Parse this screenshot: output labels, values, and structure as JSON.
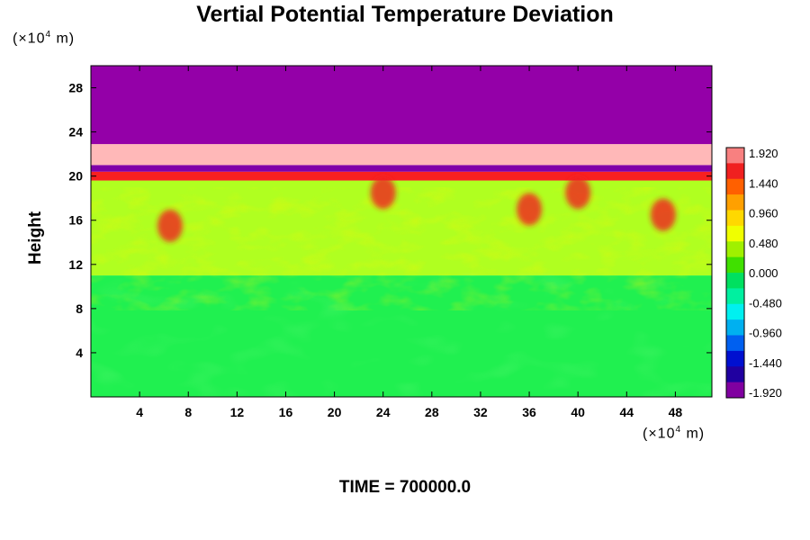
{
  "chart": {
    "title": "Vertial Potential Temperature Deviation",
    "ylabel": "Height",
    "y_unit": {
      "prefix": "(×10",
      "exp": "4",
      "suffix": " m)"
    },
    "x_unit": {
      "prefix": "(×10",
      "exp": "4",
      "suffix": " m)"
    },
    "time_label": "TIME = 700000.0"
  },
  "chart_data": {
    "type": "heatmap",
    "title": "Vertial Potential Temperature Deviation",
    "ylabel": "Height",
    "xlabel": "",
    "x_ticks": [
      4,
      8,
      12,
      16,
      20,
      24,
      28,
      32,
      36,
      40,
      44,
      48
    ],
    "y_ticks": [
      4,
      8,
      12,
      16,
      20,
      24,
      28
    ],
    "xlim": [
      0,
      51
    ],
    "ylim": [
      0,
      30
    ],
    "colorbar": {
      "labels": [
        "1.920",
        "1.440",
        "0.960",
        "0.480",
        "0.000",
        "-0.480",
        "-0.960",
        "-1.440",
        "-1.920"
      ],
      "range": [
        -1.92,
        1.92
      ],
      "colors": [
        "#f88080",
        "#f02020",
        "#ff6000",
        "#ffa000",
        "#ffd800",
        "#f0ff00",
        "#a0f000",
        "#40e000",
        "#00e060",
        "#00f0a0",
        "#00f0f0",
        "#00b0f0",
        "#0060f0",
        "#0010d0",
        "#2000a0",
        "#8000a0"
      ]
    },
    "layers": [
      {
        "y_range": [
          0,
          11
        ],
        "value": -0.05,
        "color": "#20f050"
      },
      {
        "y_range": [
          11,
          19.6
        ],
        "value": 0.45,
        "color": "#b0ff20"
      },
      {
        "y_range": [
          19.6,
          20.4
        ],
        "value": 1.6,
        "color": "#f82020"
      },
      {
        "y_range": [
          20.4,
          21.0
        ],
        "value": -1.92,
        "color": "#8000a8"
      },
      {
        "y_range": [
          21.0,
          22.9
        ],
        "value": 1.92,
        "color": "#ffb8b8"
      },
      {
        "y_range": [
          22.9,
          30
        ],
        "value": -1.92,
        "color": "#9400a8"
      }
    ],
    "hot_spots": [
      {
        "x": 6.5,
        "y": 15.5,
        "value": 1.6
      },
      {
        "x": 24,
        "y": 18.5,
        "value": 1.4
      },
      {
        "x": 36,
        "y": 17,
        "value": 1.3
      },
      {
        "x": 40,
        "y": 18.5,
        "value": 1.5
      },
      {
        "x": 47,
        "y": 16.5,
        "value": 1.5
      }
    ]
  }
}
